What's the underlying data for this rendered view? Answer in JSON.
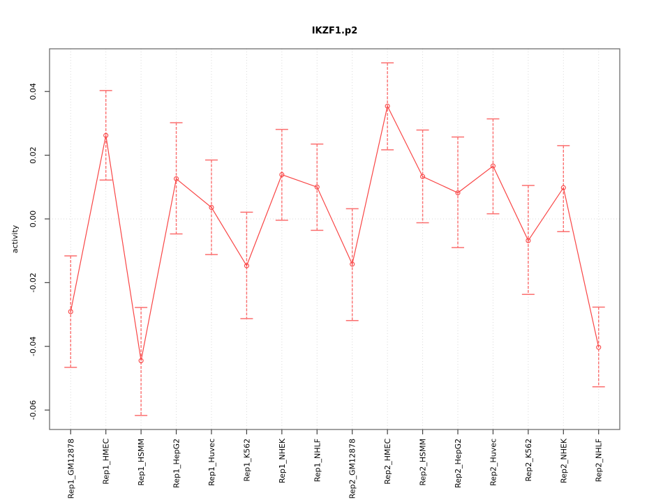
{
  "title": "IKZF1.p2",
  "chart_data": {
    "type": "line",
    "title": "IKZF1.p2",
    "xlabel": "",
    "ylabel": "activity",
    "legend": "none",
    "grid": "vertical dotted gridline at each category; dotted horizontal line at y=0",
    "marker": "open-circle",
    "error_bars": true,
    "categories": [
      "Rep1_GM12878",
      "Rep1_HMEC",
      "Rep1_HSMM",
      "Rep1_HepG2",
      "Rep1_Huvec",
      "Rep1_K562",
      "Rep1_NHEK",
      "Rep1_NHLF",
      "Rep2_GM12878",
      "Rep2_HMEC",
      "Rep2_HSMM",
      "Rep2_HepG2",
      "Rep2_Huvec",
      "Rep2_K562",
      "Rep2_NHEK",
      "Rep2_NHLF"
    ],
    "series": [
      {
        "name": "activity",
        "values": [
          -0.0291,
          0.0262,
          -0.0445,
          0.0126,
          0.0036,
          -0.0147,
          0.0139,
          0.01,
          -0.0142,
          0.0354,
          0.0133,
          0.0082,
          0.0166,
          -0.0068,
          0.0098,
          -0.0403
        ],
        "upper": [
          -0.0116,
          0.0403,
          -0.0278,
          0.0302,
          0.0185,
          0.0021,
          0.0281,
          0.0235,
          0.0032,
          0.049,
          0.0279,
          0.0257,
          0.0314,
          0.0105,
          0.023,
          -0.0277
        ],
        "lower": [
          -0.0466,
          0.0122,
          -0.0617,
          -0.0047,
          -0.0112,
          -0.0313,
          -0.0004,
          -0.0036,
          -0.0319,
          0.0217,
          -0.0012,
          -0.009,
          0.0016,
          -0.0237,
          -0.004,
          -0.0527
        ]
      }
    ],
    "ylim": [
      -0.0661,
      0.0534
    ],
    "yticks": [
      0.04,
      0.02,
      0.0,
      -0.02,
      -0.04,
      -0.06
    ],
    "ytick_labels": [
      "0.04",
      "0.02",
      "0.00",
      "-0.02",
      "-0.04",
      "-0.06"
    ],
    "colors": {
      "series": "#f94545",
      "errorbar": "#fb6e6e",
      "grid": "#d9d9d9",
      "zero_line": "#d9d9d9",
      "box": "#6e6e6e",
      "tick": "#404040",
      "text": "#000000",
      "background": "#ffffff"
    }
  }
}
